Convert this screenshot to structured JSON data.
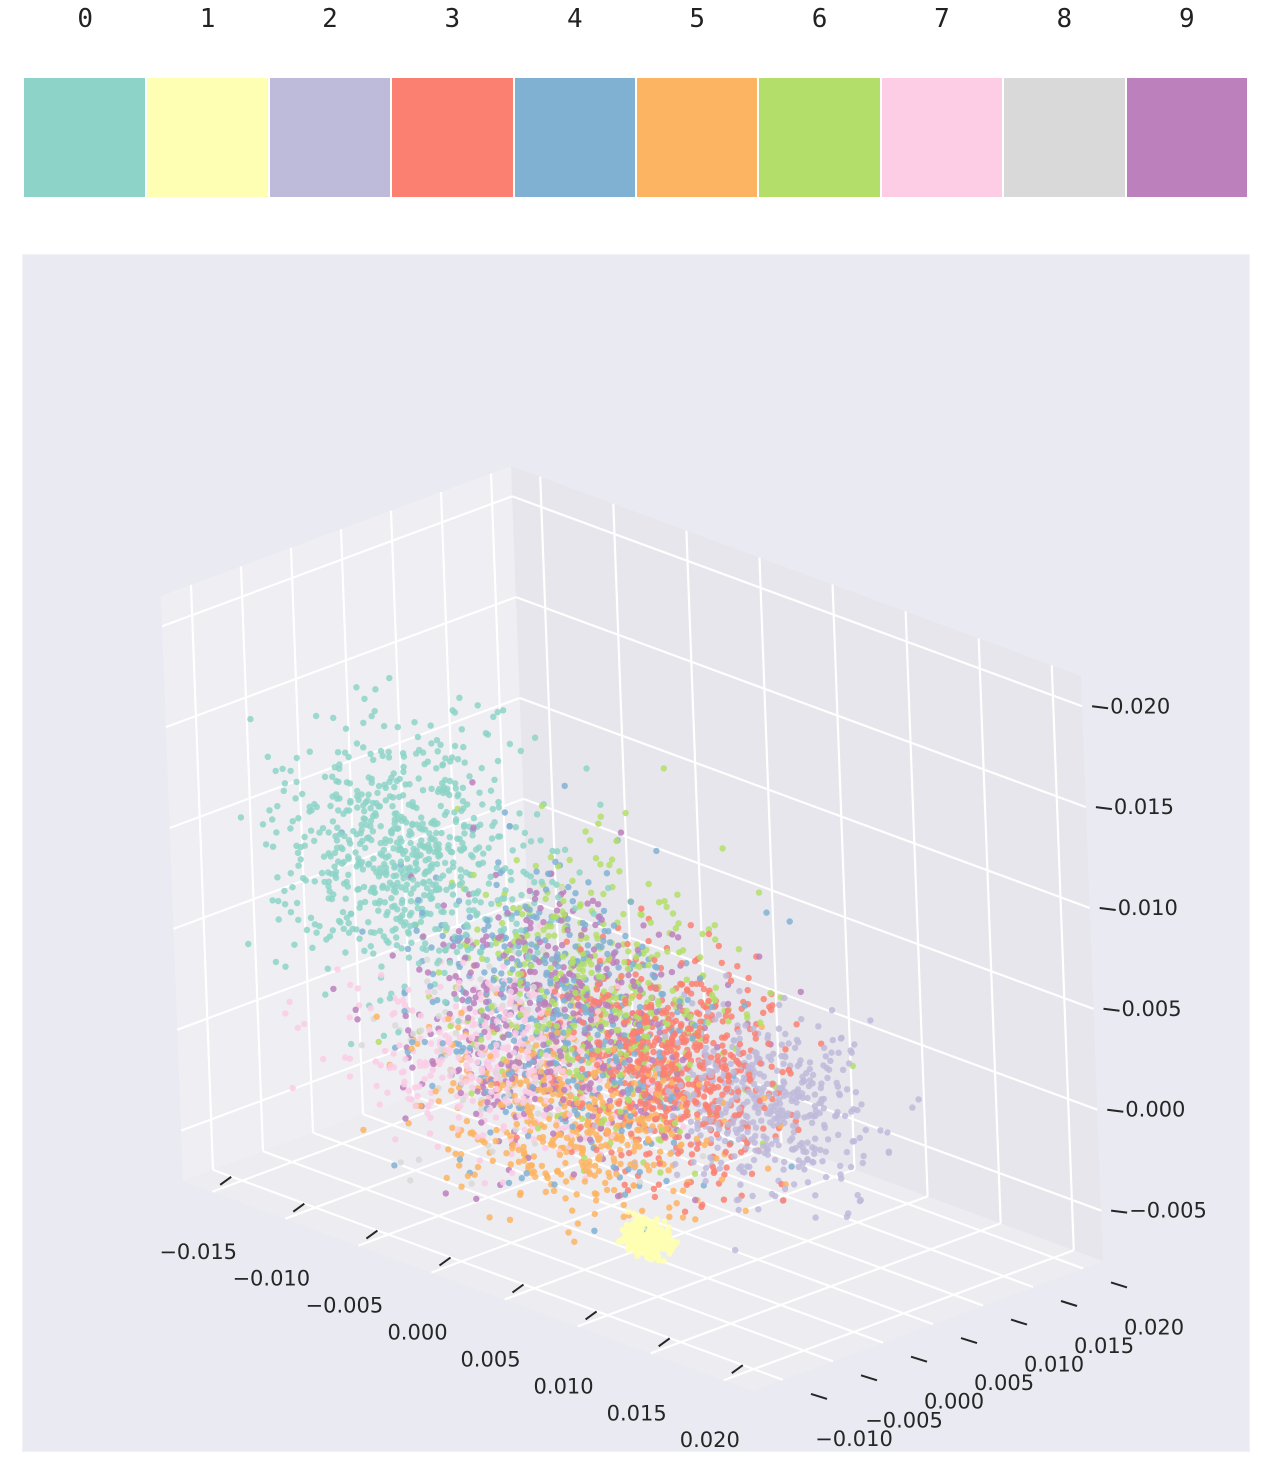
{
  "chart_data": {
    "type": "scatter",
    "projection": "3d",
    "grid": true,
    "legend_placement": "top",
    "legend": {
      "labels": [
        "0",
        "1",
        "2",
        "3",
        "4",
        "5",
        "6",
        "7",
        "8",
        "9"
      ],
      "colors": [
        "#8dd3c7",
        "#ffffb3",
        "#bebada",
        "#fb8072",
        "#80b1d3",
        "#fdb462",
        "#b3de69",
        "#fccde5",
        "#d9d9d9",
        "#bc80bd"
      ]
    },
    "x_axis": {
      "ticks": [
        -0.015,
        -0.01,
        -0.005,
        0.0,
        0.005,
        0.01,
        0.015,
        0.02
      ],
      "tick_labels": [
        "−0.015",
        "−0.010",
        "−0.005",
        "0.000",
        "0.005",
        "0.010",
        "0.015",
        "0.020"
      ],
      "range": [
        -0.017,
        0.022
      ]
    },
    "y_axis": {
      "ticks": [
        -0.01,
        -0.005,
        0.0,
        0.005,
        0.01,
        0.015,
        0.02
      ],
      "tick_labels": [
        "−0.010",
        "−0.005",
        "0.000",
        "0.005",
        "0.010",
        "0.015",
        "0.020"
      ],
      "range": [
        -0.013,
        0.022
      ]
    },
    "z_axis": {
      "ticks": [
        -0.005,
        0.0,
        0.005,
        0.01,
        0.015,
        0.02
      ],
      "tick_labels": [
        "−0.005",
        "0.000",
        "0.005",
        "0.010",
        "0.015",
        "0.020"
      ],
      "range": [
        -0.0075,
        0.0215
      ]
    },
    "series": [
      {
        "class": "0",
        "center": [
          -0.01,
          0.0,
          0.008
        ],
        "spread": [
          0.0035,
          0.004,
          0.003
        ],
        "count": 700
      },
      {
        "class": "1",
        "center": [
          0.008,
          -0.003,
          -0.0055
        ],
        "spread": [
          0.0006,
          0.0006,
          0.0004
        ],
        "count": 300
      },
      {
        "class": "2",
        "center": [
          0.008,
          0.009,
          -0.001
        ],
        "spread": [
          0.003,
          0.003,
          0.002
        ],
        "count": 450
      },
      {
        "class": "3",
        "center": [
          0.003,
          0.007,
          0.0
        ],
        "spread": [
          0.003,
          0.003,
          0.0025
        ],
        "count": 650
      },
      {
        "class": "4",
        "center": [
          -0.002,
          0.003,
          0.002
        ],
        "spread": [
          0.0045,
          0.0035,
          0.0035
        ],
        "count": 450
      },
      {
        "class": "5",
        "center": [
          -0.001,
          0.003,
          -0.003
        ],
        "spread": [
          0.004,
          0.004,
          0.002
        ],
        "count": 450
      },
      {
        "class": "6",
        "center": [
          0.0,
          0.005,
          0.003
        ],
        "spread": [
          0.004,
          0.0035,
          0.003
        ],
        "count": 450
      },
      {
        "class": "7",
        "center": [
          -0.007,
          0.004,
          -0.002
        ],
        "spread": [
          0.0035,
          0.0035,
          0.002
        ],
        "count": 400
      },
      {
        "class": "8",
        "center": [
          -0.005,
          0.002,
          0.0
        ],
        "spread": [
          0.004,
          0.004,
          0.003
        ],
        "count": 80
      },
      {
        "class": "9",
        "center": [
          -0.003,
          0.004,
          0.001
        ],
        "spread": [
          0.004,
          0.004,
          0.003
        ],
        "count": 450
      }
    ]
  }
}
